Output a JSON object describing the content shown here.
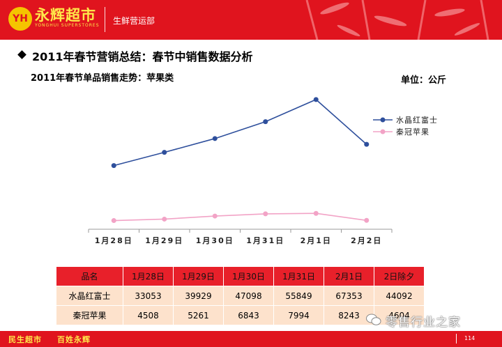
{
  "header": {
    "logo_initials": "YH",
    "brand_name": "永辉超市",
    "brand_sub": "YONGHUI SUPERSTORES",
    "department": "生鲜营运部"
  },
  "title": "2011年春节营销总结：春节中销售数据分析",
  "subtitle": "2011年春节单品销售走势：苹果类",
  "unit_label": "单位：公斤",
  "chart_data": {
    "type": "line",
    "categories": [
      "1月28日",
      "1月29日",
      "1月30日",
      "1月31日",
      "2月1日",
      "2月2日"
    ],
    "series": [
      {
        "name": "水晶红富士",
        "values": [
          33053,
          39929,
          47098,
          55849,
          67353,
          44092
        ],
        "color": "#2e4f9c"
      },
      {
        "name": "秦冠苹果",
        "values": [
          4508,
          5261,
          6843,
          7994,
          8243,
          4604
        ],
        "color": "#f2a3c6"
      }
    ],
    "ylim": [
      0,
      72000
    ],
    "xlabel": "",
    "ylabel": "",
    "grid": false,
    "legend_position": "right"
  },
  "table": {
    "header": [
      "品名",
      "1月28日",
      "1月29日",
      "1月30日",
      "1月31日",
      "2月1日",
      "2日除夕"
    ],
    "rows": [
      [
        "水晶红富士",
        "33053",
        "39929",
        "47098",
        "55849",
        "67353",
        "44092"
      ],
      [
        "秦冠苹果",
        "4508",
        "5261",
        "6843",
        "7994",
        "8243",
        "4604"
      ]
    ]
  },
  "footer": {
    "left": "民生超市",
    "right": "百姓永辉",
    "page_number": "114"
  },
  "watermark": "零售行业之家",
  "colors": {
    "brand_red": "#e0141e",
    "brand_yellow": "#ffe94a",
    "table_header": "#e8202a",
    "table_body": "#fde2cc"
  }
}
